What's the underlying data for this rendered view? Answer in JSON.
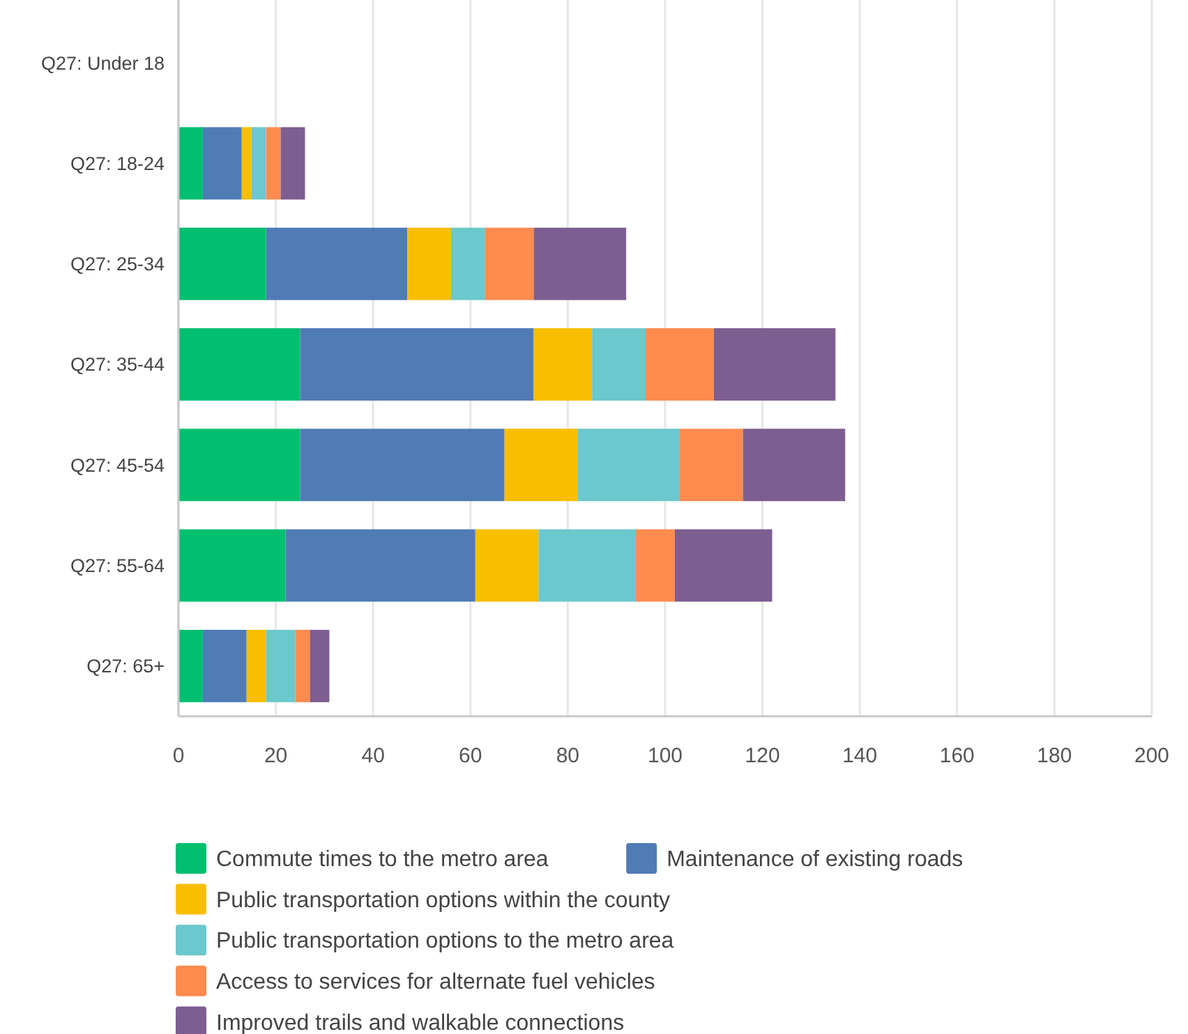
{
  "chart_data": {
    "type": "bar",
    "orientation": "horizontal",
    "stacked": true,
    "categories": [
      "Q27: Under 18",
      "Q27: 18-24",
      "Q27: 25-34",
      "Q27: 35-44",
      "Q27: 45-54",
      "Q27: 55-64",
      "Q27: 65+"
    ],
    "series": [
      {
        "name": "Commute times to the metro area",
        "color": "#00bf6f",
        "values": [
          0,
          5,
          18,
          25,
          25,
          22,
          5
        ]
      },
      {
        "name": "Maintenance of existing roads",
        "color": "#507cb6",
        "values": [
          0,
          8,
          29,
          48,
          42,
          39,
          9
        ]
      },
      {
        "name": "Public transportation options within the county",
        "color": "#f9be00",
        "values": [
          0,
          2,
          9,
          12,
          15,
          13,
          4
        ]
      },
      {
        "name": "Public transportation options to the metro area",
        "color": "#6bc8cd",
        "values": [
          0,
          3,
          7,
          11,
          21,
          20,
          6
        ]
      },
      {
        "name": "Access to services for alternate fuel vehicles",
        "color": "#ff8b4f",
        "values": [
          0,
          3,
          10,
          14,
          13,
          8,
          3
        ]
      },
      {
        "name": "Improved trails and walkable connections",
        "color": "#7d5e90",
        "values": [
          0,
          5,
          19,
          25,
          21,
          20,
          4
        ]
      }
    ],
    "xlim": [
      0,
      200
    ],
    "xticks": [
      0,
      20,
      40,
      60,
      80,
      100,
      120,
      140,
      160,
      180,
      200
    ],
    "grid": "x",
    "legend": "bottom"
  }
}
